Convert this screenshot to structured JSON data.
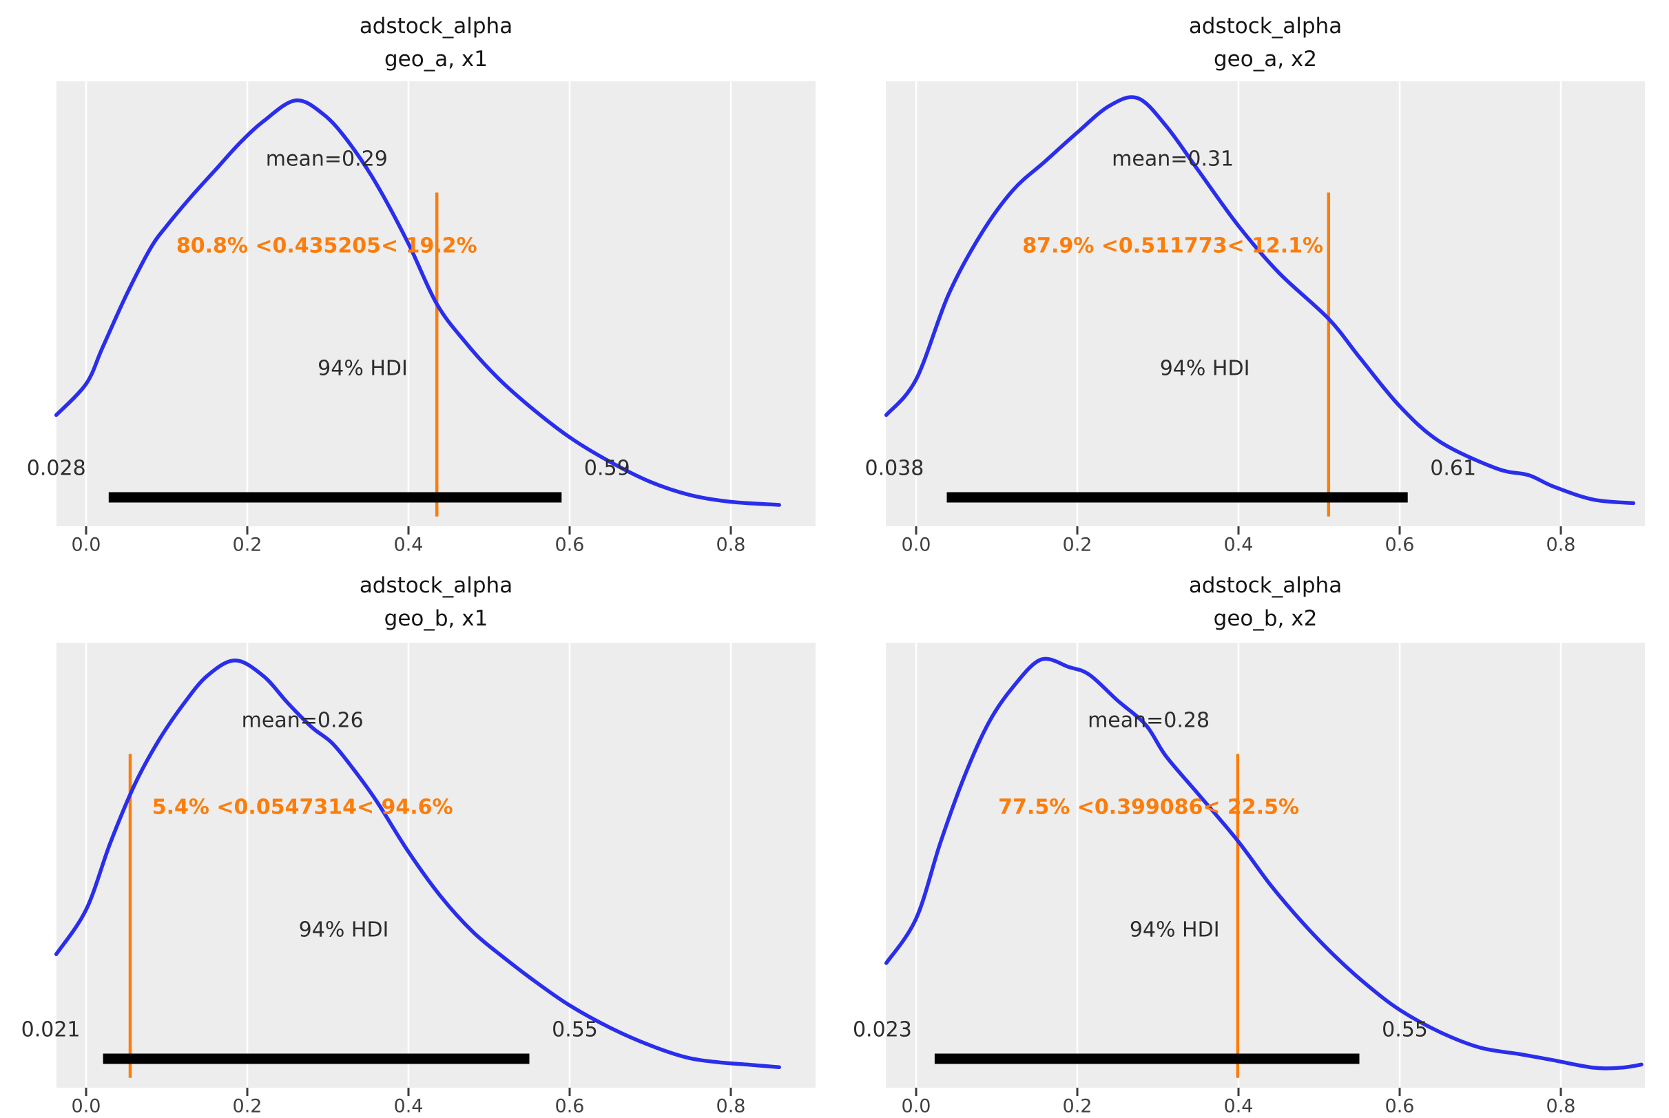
{
  "colors": {
    "figure_bg": "#ffffff",
    "plot_bg": "#ededed",
    "grid": "#ffffff",
    "curve": "#2a2eec",
    "ref_line": "#fc7d0b",
    "hdi_bar": "#000000",
    "text": "#2d2d2d",
    "tick_text": "#414141"
  },
  "chart_data": {
    "type": "area",
    "subtype": "posterior_kde_grid",
    "hdi_probability": "94%",
    "x_axis_range": [
      -0.04,
      0.9
    ],
    "grid": "on",
    "panels": [
      {
        "title_line1": "adstock_alpha",
        "title_line2": "geo_a, x1",
        "mean": 0.29,
        "mean_label": "mean=0.29",
        "ref_value": 0.435205,
        "ref_label": "80.8% <0.435205< 19.2%",
        "pct_below": "80.8%",
        "pct_above": "19.2%",
        "hdi_label": "94% HDI",
        "hdi_low": 0.028,
        "hdi_low_label": "0.028",
        "hdi_high": 0.59,
        "hdi_high_label": "0.59",
        "x_tick_values": [
          0.0,
          0.2,
          0.4,
          0.6,
          0.8
        ],
        "x_tick_labels": [
          "0.0",
          "0.2",
          "0.4",
          "0.6",
          "0.8"
        ],
        "curve": [
          [
            -0.037,
            0.25
          ],
          [
            0,
            0.32
          ],
          [
            0.02,
            0.4
          ],
          [
            0.05,
            0.52
          ],
          [
            0.08,
            0.625
          ],
          [
            0.1,
            0.675
          ],
          [
            0.13,
            0.74
          ],
          [
            0.16,
            0.8
          ],
          [
            0.19,
            0.86
          ],
          [
            0.22,
            0.91
          ],
          [
            0.26,
            0.957
          ],
          [
            0.295,
            0.925
          ],
          [
            0.325,
            0.865
          ],
          [
            0.36,
            0.77
          ],
          [
            0.4,
            0.635
          ],
          [
            0.435,
            0.5
          ],
          [
            0.47,
            0.415
          ],
          [
            0.51,
            0.335
          ],
          [
            0.55,
            0.27
          ],
          [
            0.6,
            0.2
          ],
          [
            0.65,
            0.145
          ],
          [
            0.7,
            0.1
          ],
          [
            0.75,
            0.07
          ],
          [
            0.8,
            0.055
          ],
          [
            0.86,
            0.048
          ]
        ]
      },
      {
        "title_line1": "adstock_alpha",
        "title_line2": "geo_a, x2",
        "mean": 0.31,
        "mean_label": "mean=0.31",
        "ref_value": 0.511773,
        "ref_label": "87.9% <0.511773< 12.1%",
        "pct_below": "87.9%",
        "pct_above": "12.1%",
        "hdi_label": "94% HDI",
        "hdi_low": 0.038,
        "hdi_low_label": "0.038",
        "hdi_high": 0.61,
        "hdi_high_label": "0.61",
        "x_tick_values": [
          0.0,
          0.2,
          0.4,
          0.6,
          0.8
        ],
        "x_tick_labels": [
          "0.0",
          "0.2",
          "0.4",
          "0.6",
          "0.8"
        ],
        "curve": [
          [
            -0.037,
            0.25
          ],
          [
            0,
            0.33
          ],
          [
            0.04,
            0.52
          ],
          [
            0.08,
            0.655
          ],
          [
            0.12,
            0.755
          ],
          [
            0.16,
            0.82
          ],
          [
            0.2,
            0.885
          ],
          [
            0.24,
            0.945
          ],
          [
            0.275,
            0.962
          ],
          [
            0.31,
            0.9
          ],
          [
            0.35,
            0.8
          ],
          [
            0.4,
            0.675
          ],
          [
            0.45,
            0.57
          ],
          [
            0.512,
            0.466
          ],
          [
            0.55,
            0.38
          ],
          [
            0.6,
            0.27
          ],
          [
            0.65,
            0.19
          ],
          [
            0.72,
            0.13
          ],
          [
            0.76,
            0.115
          ],
          [
            0.79,
            0.09
          ],
          [
            0.84,
            0.06
          ],
          [
            0.89,
            0.052
          ]
        ]
      },
      {
        "title_line1": "adstock_alpha",
        "title_line2": "geo_b, x1",
        "mean": 0.26,
        "mean_label": "mean=0.26",
        "ref_value": 0.0547314,
        "ref_label": "5.4% <0.0547314< 94.6%",
        "pct_below": "5.4%",
        "pct_above": "94.6%",
        "hdi_label": "94% HDI",
        "hdi_low": 0.021,
        "hdi_low_label": "0.021",
        "hdi_high": 0.55,
        "hdi_high_label": "0.55",
        "x_tick_values": [
          0.0,
          0.2,
          0.4,
          0.6,
          0.8
        ],
        "x_tick_labels": [
          "0.0",
          "0.2",
          "0.4",
          "0.6",
          "0.8"
        ],
        "curve": [
          [
            -0.037,
            0.3
          ],
          [
            0,
            0.4
          ],
          [
            0.03,
            0.55
          ],
          [
            0.06,
            0.68
          ],
          [
            0.09,
            0.78
          ],
          [
            0.12,
            0.86
          ],
          [
            0.15,
            0.925
          ],
          [
            0.185,
            0.96
          ],
          [
            0.22,
            0.925
          ],
          [
            0.25,
            0.865
          ],
          [
            0.28,
            0.81
          ],
          [
            0.305,
            0.775
          ],
          [
            0.33,
            0.72
          ],
          [
            0.36,
            0.645
          ],
          [
            0.4,
            0.53
          ],
          [
            0.44,
            0.43
          ],
          [
            0.48,
            0.35
          ],
          [
            0.52,
            0.29
          ],
          [
            0.56,
            0.235
          ],
          [
            0.6,
            0.185
          ],
          [
            0.65,
            0.135
          ],
          [
            0.7,
            0.095
          ],
          [
            0.745,
            0.068
          ],
          [
            0.78,
            0.058
          ],
          [
            0.82,
            0.052
          ],
          [
            0.86,
            0.046
          ]
        ]
      },
      {
        "title_line1": "adstock_alpha",
        "title_line2": "geo_b, x2",
        "mean": 0.28,
        "mean_label": "mean=0.28",
        "ref_value": 0.399086,
        "ref_label": "77.5% <0.399086< 22.5%",
        "pct_below": "77.5%",
        "pct_above": "22.5%",
        "hdi_label": "94% HDI",
        "hdi_low": 0.023,
        "hdi_low_label": "0.023",
        "hdi_high": 0.55,
        "hdi_high_label": "0.55",
        "x_tick_values": [
          0.0,
          0.2,
          0.4,
          0.6,
          0.8
        ],
        "x_tick_labels": [
          "0.0",
          "0.2",
          "0.4",
          "0.6",
          "0.8"
        ],
        "curve": [
          [
            -0.037,
            0.28
          ],
          [
            0,
            0.38
          ],
          [
            0.03,
            0.55
          ],
          [
            0.06,
            0.7
          ],
          [
            0.09,
            0.82
          ],
          [
            0.12,
            0.9
          ],
          [
            0.155,
            0.962
          ],
          [
            0.19,
            0.945
          ],
          [
            0.215,
            0.928
          ],
          [
            0.25,
            0.87
          ],
          [
            0.285,
            0.815
          ],
          [
            0.31,
            0.745
          ],
          [
            0.35,
            0.66
          ],
          [
            0.399,
            0.555
          ],
          [
            0.44,
            0.455
          ],
          [
            0.48,
            0.37
          ],
          [
            0.52,
            0.295
          ],
          [
            0.56,
            0.23
          ],
          [
            0.6,
            0.175
          ],
          [
            0.65,
            0.125
          ],
          [
            0.7,
            0.09
          ],
          [
            0.75,
            0.075
          ],
          [
            0.79,
            0.062
          ],
          [
            0.84,
            0.045
          ],
          [
            0.875,
            0.045
          ],
          [
            0.9,
            0.052
          ]
        ]
      }
    ]
  }
}
